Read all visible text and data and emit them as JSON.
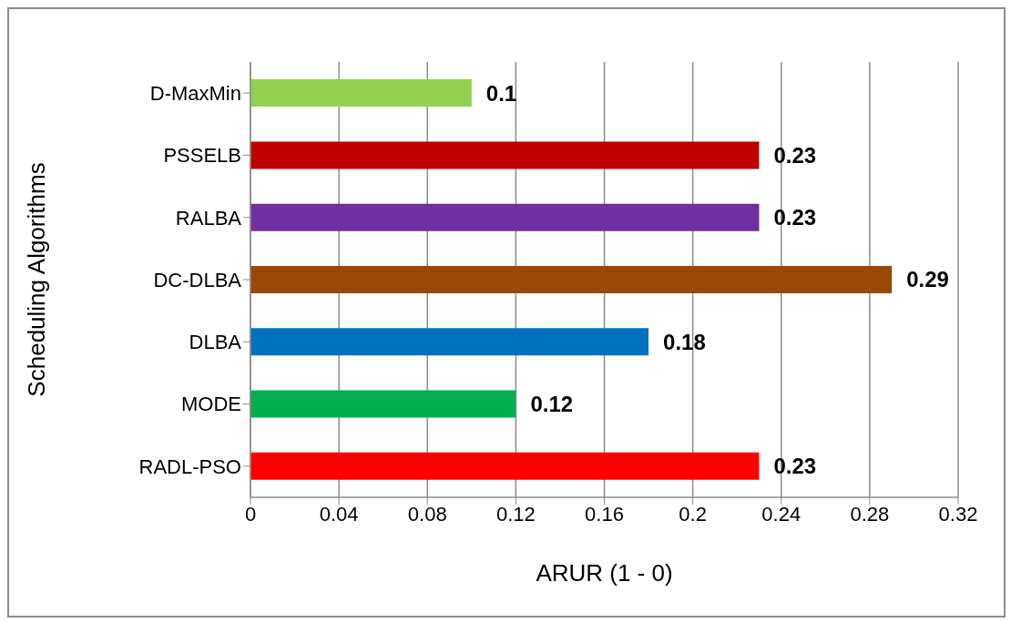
{
  "chart_data": {
    "type": "bar",
    "orientation": "horizontal",
    "xlabel": "ARUR (1 - 0)",
    "ylabel": "Scheduling Algorithms",
    "categories": [
      "D-MaxMin",
      "PSSELB",
      "RALBA",
      "DC-DLBA",
      "DLBA",
      "MODE",
      "RADL-PSO"
    ],
    "values": [
      0.1,
      0.23,
      0.23,
      0.29,
      0.18,
      0.12,
      0.23
    ],
    "colors": [
      "#92d050",
      "#c00000",
      "#7030a0",
      "#984807",
      "#0070c0",
      "#00b050",
      "#ff0000"
    ],
    "xlim": [
      0,
      0.32
    ],
    "xticks": [
      0,
      0.04,
      0.08,
      0.12,
      0.16,
      0.2,
      0.24,
      0.28,
      0.32
    ],
    "grid": "x",
    "data_labels": true
  }
}
